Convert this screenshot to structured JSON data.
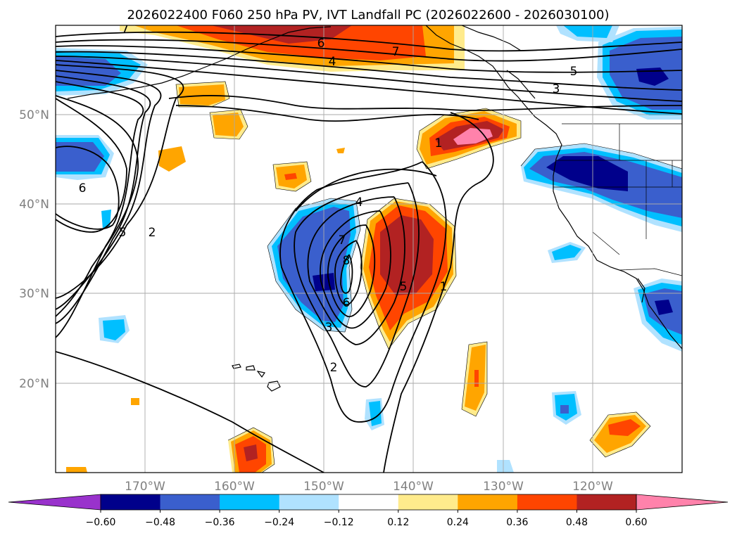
{
  "title": "2026022400 F060 250 hPa PV, IVT Landfall PC (2026022600 - 2026030100)",
  "map": {
    "lon_range": [
      -180,
      -110
    ],
    "lat_range": [
      10,
      60
    ],
    "lat_labels": [
      "20°N",
      "30°N",
      "40°N",
      "50°N"
    ],
    "lon_labels": [
      "170°W",
      "160°W",
      "150°W",
      "140°W",
      "130°W",
      "120°W"
    ],
    "gridlines": true,
    "coastlines": true,
    "state_borders": true
  },
  "colorbar": {
    "orientation": "horizontal",
    "extend": "both",
    "levels": [
      -0.6,
      -0.48,
      -0.36,
      -0.24,
      -0.12,
      0.12,
      0.24,
      0.36,
      0.48,
      0.6
    ],
    "tick_labels": [
      "−0.60",
      "−0.48",
      "−0.36",
      "−0.24",
      "−0.12",
      "0.12",
      "0.24",
      "0.36",
      "0.48",
      "0.60"
    ],
    "colors": [
      "#9932cc",
      "#00008b",
      "#3a5fcd",
      "#00bfff",
      "#b0e2ff",
      "#ffffff",
      "#ffeb8c",
      "#ffa500",
      "#ff4500",
      "#b22222",
      "#ff82ab"
    ]
  },
  "chart_data": {
    "type": "contour_map",
    "filled_field": "IVT Landfall PC",
    "contour_field": "250 hPa PV",
    "contour_labels": [
      "1",
      "2",
      "3",
      "4",
      "5",
      "6",
      "7",
      "8"
    ]
  }
}
